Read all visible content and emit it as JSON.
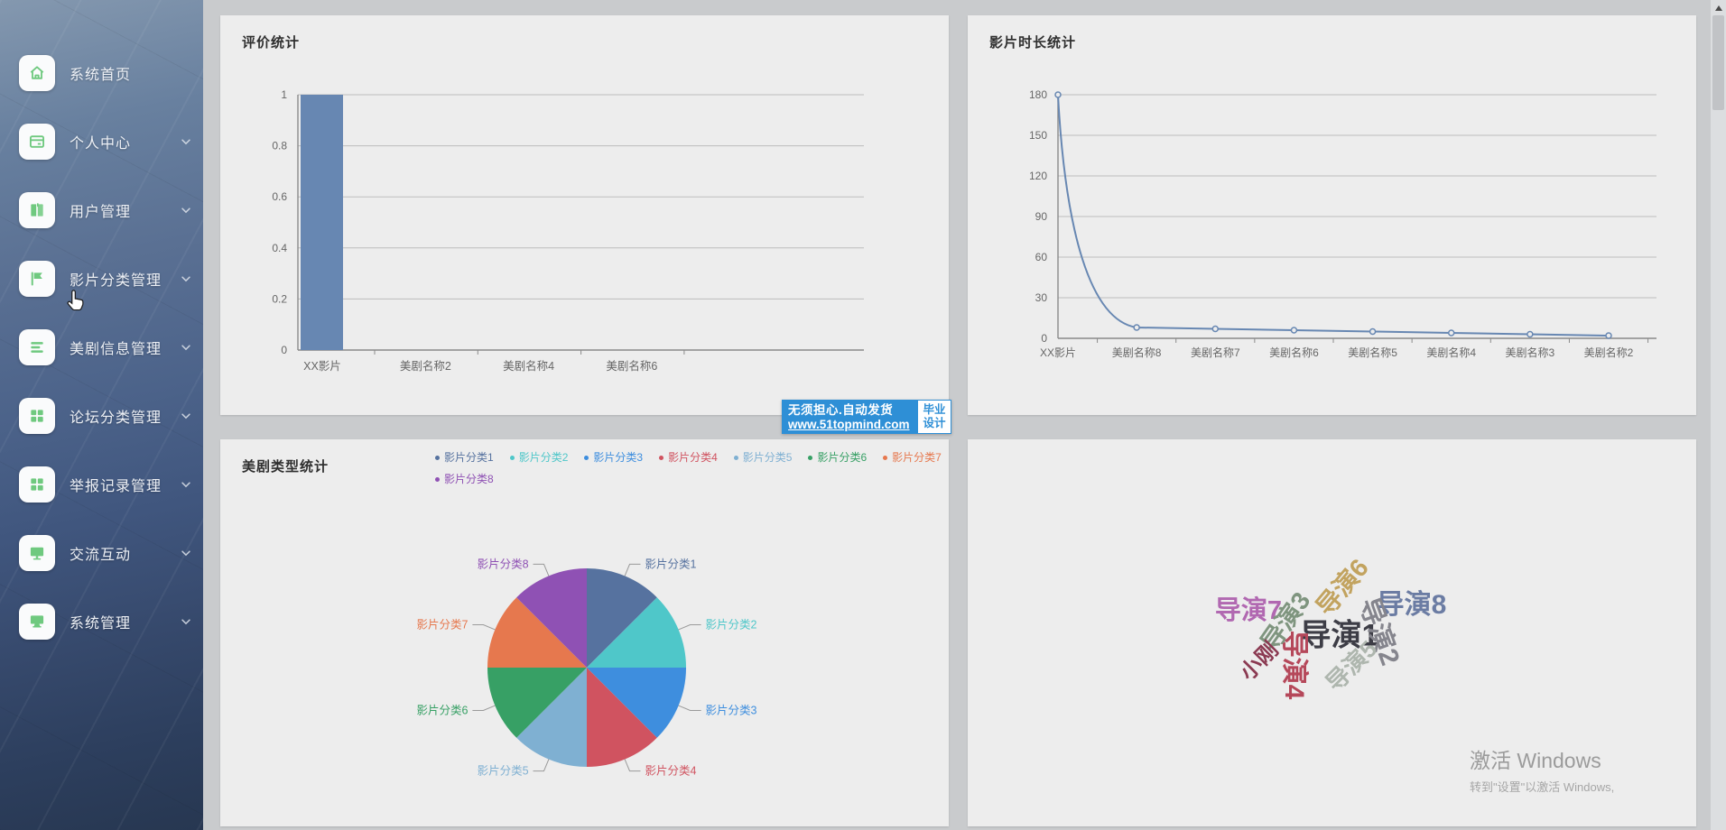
{
  "sidebar": {
    "items": [
      {
        "name": "home",
        "label": "系统首页",
        "icon": "home-icon",
        "expandable": false
      },
      {
        "name": "profile",
        "label": "个人中心",
        "icon": "card-icon",
        "expandable": true
      },
      {
        "name": "user-management",
        "label": "用户管理",
        "icon": "book-icon",
        "expandable": true
      },
      {
        "name": "film-category",
        "label": "影片分类管理",
        "icon": "flag-icon",
        "expandable": true
      },
      {
        "name": "drama-info",
        "label": "美剧信息管理",
        "icon": "list-icon",
        "expandable": true
      },
      {
        "name": "forum-category",
        "label": "论坛分类管理",
        "icon": "grid-icon",
        "expandable": true
      },
      {
        "name": "report-records",
        "label": "举报记录管理",
        "icon": "grid-icon",
        "expandable": true
      },
      {
        "name": "interaction",
        "label": "交流互动",
        "icon": "monitor-icon",
        "expandable": true
      },
      {
        "name": "system-management",
        "label": "系统管理",
        "icon": "server-icon",
        "expandable": true
      }
    ],
    "icon_color": "#6fc97f"
  },
  "ad_banner": {
    "line1": "无须担心.自动发货",
    "line2": "www.51topmind.com",
    "badge_line1": "毕业",
    "badge_line2": "设计",
    "bg_color": "#2e8fd6"
  },
  "watermark": {
    "line1": "激活 Windows",
    "line2": "转到\"设置\"以激活 Windows,"
  },
  "chart_data": [
    {
      "id": "rating",
      "type": "bar",
      "title": "评价统计",
      "categories": [
        "XX影片",
        "美剧名称2",
        "美剧名称4",
        "美剧名称6"
      ],
      "values": [
        1,
        0,
        0,
        0
      ],
      "ylim": [
        0,
        1
      ],
      "yticks": [
        0,
        0.2,
        0.4,
        0.6,
        0.8,
        1
      ],
      "bar_color": "#6787b2",
      "grid": true,
      "legend_position": "none"
    },
    {
      "id": "duration",
      "type": "line",
      "title": "影片时长统计",
      "categories": [
        "XX影片",
        "美剧名称8",
        "美剧名称7",
        "美剧名称6",
        "美剧名称5",
        "美剧名称4",
        "美剧名称3",
        "美剧名称2"
      ],
      "values": [
        180,
        8,
        7,
        6,
        5,
        4,
        3,
        2
      ],
      "ylim": [
        0,
        180
      ],
      "yticks": [
        0,
        30,
        60,
        90,
        120,
        150,
        180
      ],
      "line_color": "#6787b2",
      "smooth": true,
      "grid": true,
      "legend_position": "none"
    },
    {
      "id": "type",
      "type": "pie",
      "title": "美剧类型统计",
      "labels": [
        "影片分类1",
        "影片分类2",
        "影片分类3",
        "影片分类4",
        "影片分类5",
        "影片分类6",
        "影片分类7",
        "影片分类8"
      ],
      "values": [
        1,
        1,
        1,
        1,
        1,
        1,
        1,
        1
      ],
      "colors": [
        "#56729f",
        "#4fc7c9",
        "#3e8ede",
        "#d05360",
        "#7fb0d2",
        "#37a065",
        "#e6784e",
        "#8f51b4"
      ],
      "legend_position": "top"
    },
    {
      "id": "directors",
      "type": "wordcloud",
      "title": "",
      "words": [
        {
          "text": "导演1",
          "color": "#3d3d46",
          "size": 34,
          "x": 412,
          "y": 214,
          "rotate": 0
        },
        {
          "text": "导演8",
          "color": "#6b7ca3",
          "size": 30,
          "x": 492,
          "y": 180,
          "rotate": 0
        },
        {
          "text": "导演7",
          "color": "#b168b1",
          "size": 29,
          "x": 311,
          "y": 187,
          "rotate": 0
        },
        {
          "text": "导演6",
          "color": "#c2a35f",
          "size": 28,
          "x": 414,
          "y": 163,
          "rotate": -50
        },
        {
          "text": "导演3",
          "color": "#7f957f",
          "size": 28,
          "x": 351,
          "y": 201,
          "rotate": -55
        },
        {
          "text": "导演2",
          "color": "#85858d",
          "size": 30,
          "x": 459,
          "y": 212,
          "rotate": 70
        },
        {
          "text": "导演5",
          "color": "#aeb6ae",
          "size": 26,
          "x": 424,
          "y": 250,
          "rotate": -45
        },
        {
          "text": "导演4",
          "color": "#b5485a",
          "size": 30,
          "x": 365,
          "y": 250,
          "rotate": 90
        },
        {
          "text": "小刚",
          "color": "#8b3a52",
          "size": 24,
          "x": 321,
          "y": 244,
          "rotate": -45
        }
      ]
    }
  ]
}
